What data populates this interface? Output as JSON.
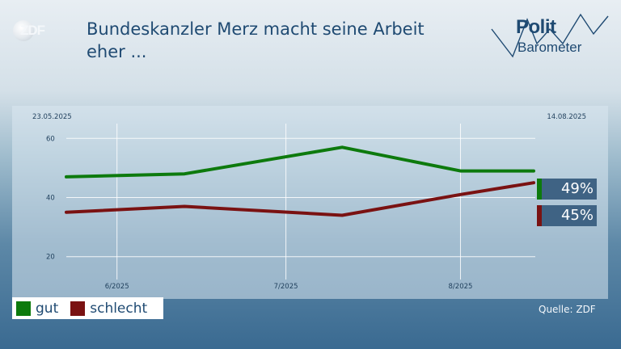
{
  "logo": {
    "text": "ZDF"
  },
  "title": "Bundeskanzler Merz macht seine Arbeit eher ...",
  "brand": {
    "line1": "Polit",
    "line2": "Barometer"
  },
  "source": "Quelle: ZDF",
  "colors": {
    "gut": "#0d7a0d",
    "schlecht": "#7a1212",
    "title": "#1f4a72",
    "badge": "#3f6384"
  },
  "chart_data": {
    "type": "line",
    "title": "Bundeskanzler Merz macht seine Arbeit eher ...",
    "date_start": "23.05.2025",
    "date_end": "14.08.2025",
    "x": [
      "2025-05-23",
      "2025-06-13",
      "2025-07-11",
      "2025-08-01",
      "2025-08-14"
    ],
    "y_ticks": [
      "20",
      "40",
      "60"
    ],
    "ylim": [
      15,
      65
    ],
    "x_ticks": [
      {
        "label": "6/2025",
        "date": "2025-06-01"
      },
      {
        "label": "7/2025",
        "date": "2025-07-01"
      },
      {
        "label": "8/2025",
        "date": "2025-08-01"
      }
    ],
    "series": [
      {
        "name": "gut",
        "color": "#0d7a0d",
        "values": [
          47,
          48,
          57,
          49,
          49
        ],
        "end_label": "49%"
      },
      {
        "name": "schlecht",
        "color": "#7a1212",
        "values": [
          35,
          37,
          34,
          41,
          45
        ],
        "end_label": "45%"
      }
    ],
    "grid": true,
    "legend": "bottom-left"
  }
}
